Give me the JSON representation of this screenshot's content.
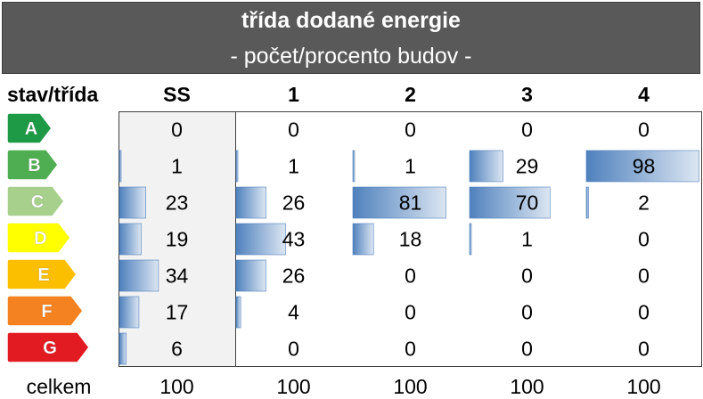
{
  "header": {
    "title": "třída dodané energie",
    "subtitle": "- počet/procento budov -"
  },
  "chart_data": {
    "type": "table",
    "corner_label": "stav/třída",
    "columns": [
      "SS",
      "1",
      "2",
      "3",
      "4"
    ],
    "rows": [
      {
        "label": "A",
        "color": "#1e9a47",
        "values": [
          0,
          0,
          0,
          0,
          0
        ]
      },
      {
        "label": "B",
        "color": "#4fae51",
        "values": [
          1,
          1,
          1,
          29,
          98
        ]
      },
      {
        "label": "C",
        "color": "#a8d08d",
        "values": [
          23,
          26,
          81,
          70,
          2
        ]
      },
      {
        "label": "D",
        "color": "#ffff00",
        "values": [
          19,
          43,
          18,
          1,
          0
        ]
      },
      {
        "label": "E",
        "color": "#fcbf00",
        "values": [
          34,
          26,
          0,
          0,
          0
        ]
      },
      {
        "label": "F",
        "color": "#f58220",
        "values": [
          17,
          4,
          0,
          0,
          0
        ]
      },
      {
        "label": "G",
        "color": "#e21a22",
        "values": [
          6,
          0,
          0,
          0,
          0
        ]
      }
    ],
    "total_label": "celkem",
    "totals": [
      100,
      100,
      100,
      100,
      100
    ],
    "data_bars": {
      "max": 100,
      "color": "#4f81bd"
    },
    "highlight_column": "SS",
    "highlight_color": "#f2f2f2"
  }
}
